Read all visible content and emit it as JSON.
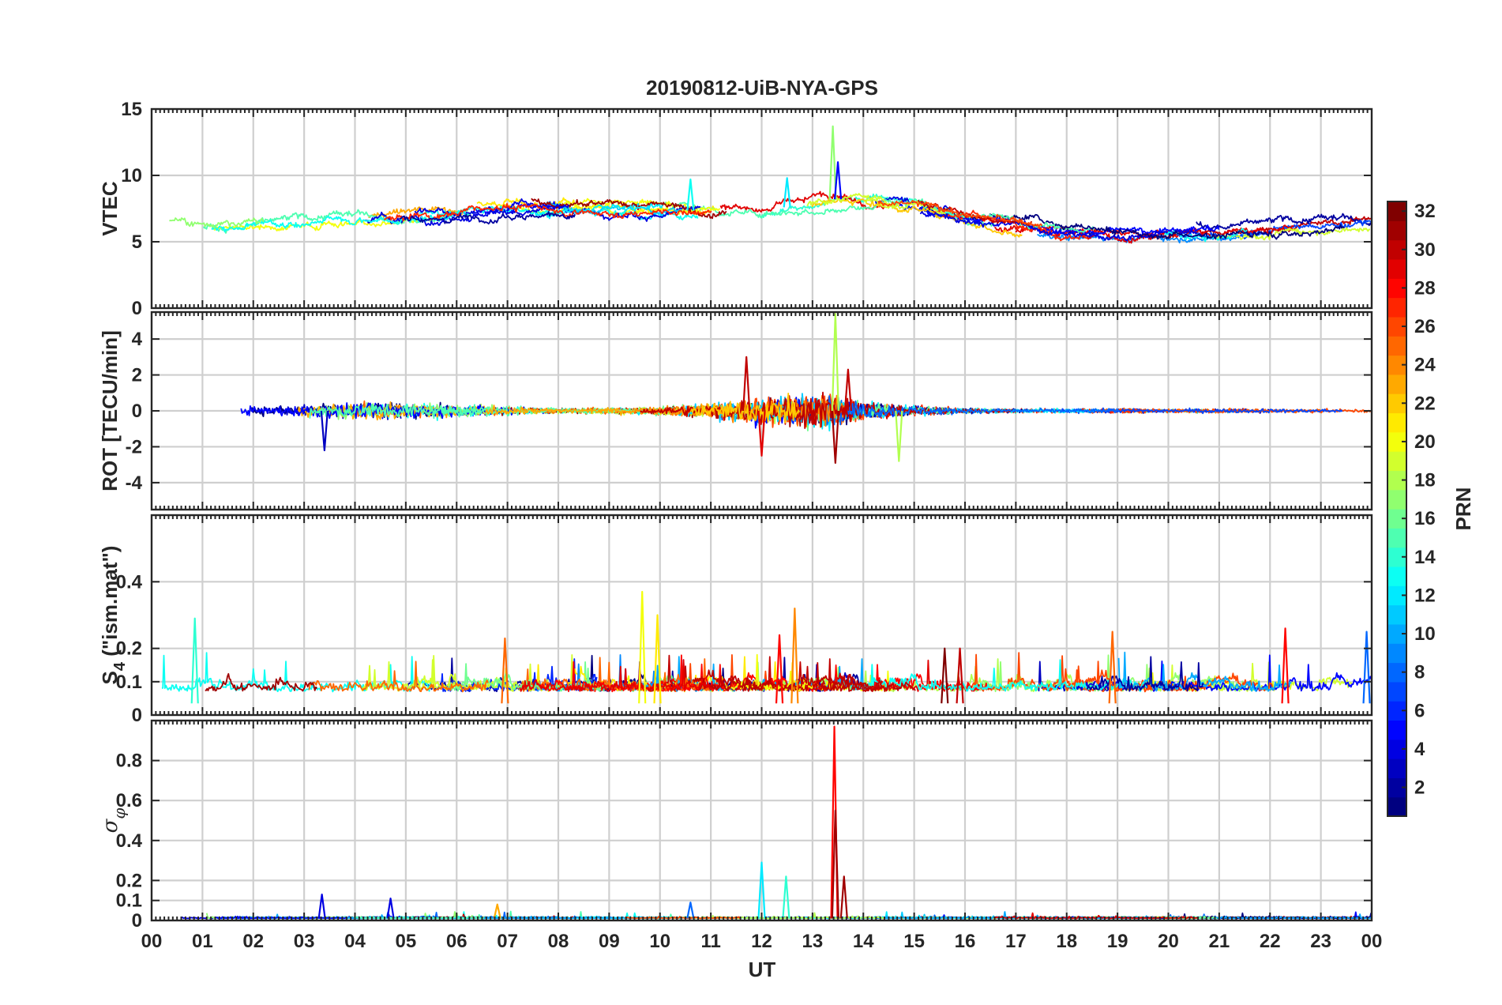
{
  "chart_data": {
    "title": "20190812-UiB-NYA-GPS",
    "type": "line",
    "xlabel": "UT",
    "x_ticks": [
      "00",
      "01",
      "02",
      "03",
      "04",
      "05",
      "06",
      "07",
      "08",
      "09",
      "10",
      "11",
      "12",
      "13",
      "14",
      "15",
      "16",
      "17",
      "18",
      "19",
      "20",
      "21",
      "22",
      "23",
      "00"
    ],
    "x_range_hours": [
      0,
      24
    ],
    "grid": true,
    "colorbar": {
      "label": "PRN",
      "range": [
        1,
        32
      ],
      "ticks": [
        2,
        4,
        6,
        8,
        10,
        12,
        14,
        16,
        18,
        20,
        22,
        24,
        26,
        28,
        30,
        32
      ],
      "colormap": "jet",
      "placement": "right"
    },
    "panels": [
      {
        "id": "vtec",
        "ylabel": "VTEC",
        "ylim": [
          0,
          15
        ],
        "yticks": [
          0,
          5,
          10,
          15
        ],
        "baseline_profile": [
          [
            0,
            6
          ],
          [
            3,
            6.4
          ],
          [
            6,
            7.3
          ],
          [
            7,
            7.8
          ],
          [
            9,
            7.4
          ],
          [
            12,
            7.3
          ],
          [
            13.5,
            8.2
          ],
          [
            15,
            7.8
          ],
          [
            16,
            7
          ],
          [
            18,
            5.8
          ],
          [
            20,
            5.6
          ],
          [
            22,
            5.9
          ],
          [
            24,
            6.5
          ]
        ],
        "spread": 1.1,
        "events": [
          {
            "t": 13.4,
            "value": 13.7,
            "prn": 17
          },
          {
            "t": 13.5,
            "value": 11.0,
            "prn": 5
          },
          {
            "t": 10.6,
            "value": 9.7,
            "prn": 13
          },
          {
            "t": 12.5,
            "value": 9.8,
            "prn": 12
          }
        ]
      },
      {
        "id": "rot",
        "ylabel": "ROT [TECU/min]",
        "ylim": [
          -5.5,
          5.5
        ],
        "yticks": [
          -4,
          -2,
          0,
          2,
          4
        ],
        "noise_profile": [
          [
            0,
            0.2
          ],
          [
            3,
            0.5
          ],
          [
            4.5,
            0.7
          ],
          [
            6,
            0.5
          ],
          [
            8,
            0.2
          ],
          [
            10,
            0.3
          ],
          [
            11,
            0.6
          ],
          [
            12,
            1.1
          ],
          [
            13.3,
            1.4
          ],
          [
            14,
            0.7
          ],
          [
            15,
            0.4
          ],
          [
            16,
            0.2
          ],
          [
            24,
            0.15
          ]
        ],
        "events": [
          {
            "t": 13.45,
            "value": 5.4,
            "prn": 18
          },
          {
            "t": 13.45,
            "value": -2.9,
            "prn": 31
          },
          {
            "t": 14.7,
            "value": -2.8,
            "prn": 18
          },
          {
            "t": 3.4,
            "value": -2.2,
            "prn": 3
          },
          {
            "t": 12.0,
            "value": -2.5,
            "prn": 29
          },
          {
            "t": 11.7,
            "value": 3.0,
            "prn": 30
          },
          {
            "t": 13.7,
            "value": 2.3,
            "prn": 30
          }
        ]
      },
      {
        "id": "s4",
        "ylabel": "S",
        "ylabel_sub": "4",
        "ylabel_suffix": " (\"ism.mat\")",
        "ylim": [
          0,
          0.6
        ],
        "yticks": [
          0,
          0.1,
          0.2,
          0.4
        ],
        "base_level": 0.07,
        "events": [
          {
            "t": 0.85,
            "value": 0.29,
            "prn": 14
          },
          {
            "t": 9.65,
            "value": 0.37,
            "prn": 20
          },
          {
            "t": 9.95,
            "value": 0.3,
            "prn": 21
          },
          {
            "t": 12.65,
            "value": 0.32,
            "prn": 24
          },
          {
            "t": 18.9,
            "value": 0.25,
            "prn": 25
          },
          {
            "t": 22.3,
            "value": 0.26,
            "prn": 28
          },
          {
            "t": 23.9,
            "value": 0.25,
            "prn": 8
          },
          {
            "t": 6.95,
            "value": 0.23,
            "prn": 25
          },
          {
            "t": 12.35,
            "value": 0.24,
            "prn": 28
          },
          {
            "t": 15.6,
            "value": 0.2,
            "prn": 32
          },
          {
            "t": 15.9,
            "value": 0.2,
            "prn": 30
          }
        ]
      },
      {
        "id": "sigma_phi",
        "ylabel": "σ",
        "ylabel_sub": "φ",
        "ylim": [
          0,
          1.0
        ],
        "yticks": [
          0,
          0.1,
          0.2,
          0.4,
          0.6,
          0.8
        ],
        "base_level": 0.02,
        "events": [
          {
            "t": 13.43,
            "value": 0.97,
            "prn": 28
          },
          {
            "t": 13.45,
            "value": 0.55,
            "prn": 31
          },
          {
            "t": 13.62,
            "value": 0.22,
            "prn": 31
          },
          {
            "t": 12.0,
            "value": 0.29,
            "prn": 12
          },
          {
            "t": 12.48,
            "value": 0.22,
            "prn": 14
          },
          {
            "t": 3.35,
            "value": 0.13,
            "prn": 4
          },
          {
            "t": 4.7,
            "value": 0.11,
            "prn": 4
          },
          {
            "t": 10.6,
            "value": 0.09,
            "prn": 8
          },
          {
            "t": 6.8,
            "value": 0.08,
            "prn": 23
          }
        ]
      }
    ]
  }
}
